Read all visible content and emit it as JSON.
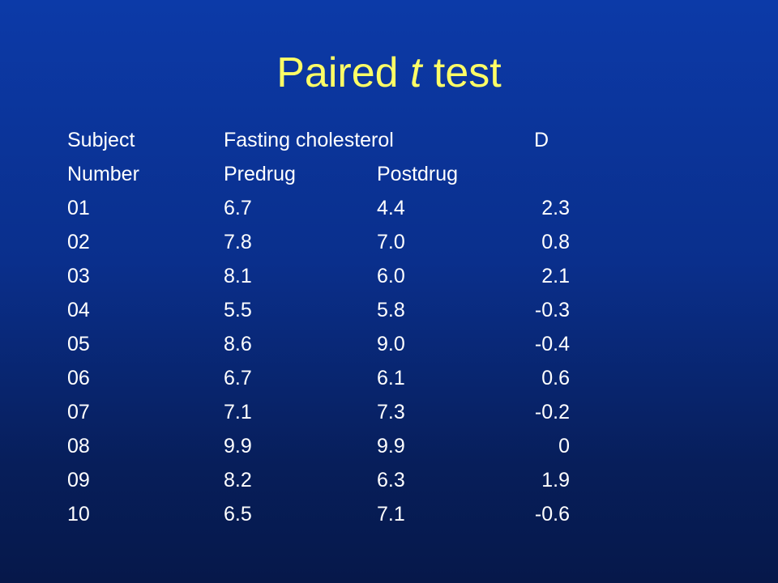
{
  "title": {
    "prefix": "Paired ",
    "italic": "t",
    "suffix": " test"
  },
  "header_row_1": {
    "subject": "Subject",
    "fasting": "Fasting cholesterol",
    "d": "D"
  },
  "header_row_2": {
    "number": "Number",
    "predrug": "Predrug",
    "postdrug": "Postdrug"
  },
  "rows": [
    {
      "subject": "01",
      "predrug": "6.7",
      "postdrug": "4.4",
      "d": "2.3"
    },
    {
      "subject": "02",
      "predrug": "7.8",
      "postdrug": "7.0",
      "d": "0.8"
    },
    {
      "subject": "03",
      "predrug": "8.1",
      "postdrug": "6.0",
      "d": "2.1"
    },
    {
      "subject": "04",
      "predrug": "5.5",
      "postdrug": "5.8",
      "d": "-0.3"
    },
    {
      "subject": "05",
      "predrug": "8.6",
      "postdrug": "9.0",
      "d": "-0.4"
    },
    {
      "subject": "06",
      "predrug": "6.7",
      "postdrug": "6.1",
      "d": "0.6"
    },
    {
      "subject": "07",
      "predrug": "7.1",
      "postdrug": "7.3",
      "d": "-0.2"
    },
    {
      "subject": "08",
      "predrug": "9.9",
      "postdrug": "9.9",
      "d": "0"
    },
    {
      "subject": "09",
      "predrug": "8.2",
      "postdrug": "6.3",
      "d": "1.9"
    },
    {
      "subject": "10",
      "predrug": "6.5",
      "postdrug": "7.1",
      "d": "-0.6"
    }
  ]
}
